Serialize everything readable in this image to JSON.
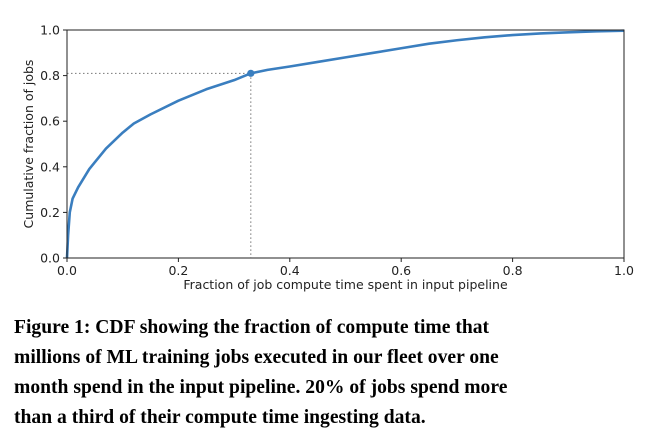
{
  "chart_data": {
    "type": "line",
    "xlabel": "Fraction of job compute time spent in input pipeline",
    "ylabel": "Cumulative fraction of jobs",
    "xlim": [
      0,
      1
    ],
    "ylim": [
      0,
      1
    ],
    "xticks": [
      "0.0",
      "0.2",
      "0.4",
      "0.6",
      "0.8",
      "1.0"
    ],
    "yticks": [
      "0.0",
      "0.2",
      "0.4",
      "0.6",
      "0.8",
      "1.0"
    ],
    "grid": false,
    "legend": "none",
    "line_color": "#3a7ebf",
    "annotation": {
      "x": 0.33,
      "y": 0.81,
      "style": "dotted reference lines to both axes"
    },
    "series": [
      {
        "x": [
          0.0,
          0.002,
          0.005,
          0.01,
          0.02,
          0.03,
          0.04,
          0.05,
          0.07,
          0.1,
          0.12,
          0.15,
          0.2,
          0.25,
          0.3,
          0.33,
          0.36,
          0.4,
          0.45,
          0.5,
          0.55,
          0.6,
          0.65,
          0.7,
          0.75,
          0.8,
          0.85,
          0.9,
          0.95,
          1.0
        ],
        "y": [
          0.0,
          0.1,
          0.2,
          0.26,
          0.31,
          0.35,
          0.39,
          0.42,
          0.48,
          0.55,
          0.59,
          0.63,
          0.69,
          0.74,
          0.78,
          0.81,
          0.825,
          0.84,
          0.86,
          0.88,
          0.9,
          0.92,
          0.94,
          0.955,
          0.968,
          0.978,
          0.985,
          0.99,
          0.994,
          0.997
        ]
      }
    ]
  },
  "caption": {
    "line1": "Figure 1: CDF showing the fraction of compute time that",
    "line2": "millions of ML training jobs executed in our fleet over one",
    "line3": "month spend in the input pipeline. 20% of jobs spend more",
    "line4": "than a third of their compute time ingesting data."
  }
}
